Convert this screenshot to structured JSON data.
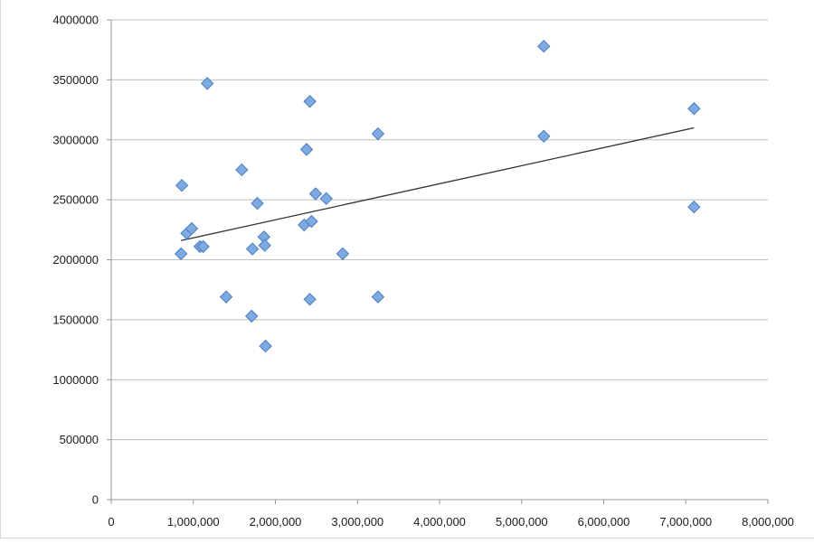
{
  "chart_data": {
    "type": "scatter",
    "title": "",
    "xlabel": "",
    "ylabel": "",
    "xlim": [
      0,
      8000000
    ],
    "ylim": [
      0,
      4000000
    ],
    "x_ticks": [
      0,
      1000000,
      2000000,
      3000000,
      4000000,
      5000000,
      6000000,
      7000000,
      8000000
    ],
    "x_tick_labels": [
      "0",
      "1,000,000",
      "2,000,000",
      "3,000,000",
      "4,000,000",
      "5,000,000",
      "6,000,000",
      "7,000,000",
      "8,000,000"
    ],
    "y_ticks": [
      0,
      500000,
      1000000,
      1500000,
      2000000,
      2500000,
      3000000,
      3500000,
      4000000
    ],
    "y_tick_labels": [
      "0",
      "500000",
      "1000000",
      "1500000",
      "2000000",
      "2500000",
      "3000000",
      "3500000",
      "4000000"
    ],
    "grid": {
      "horizontal": true,
      "vertical": false
    },
    "legend": "none",
    "marker": "diamond",
    "colors": {
      "marker_fill": "#7ea9e1",
      "marker_edge": "#4a7fc0",
      "trendline": "#333333",
      "grid": "#bfbfbf",
      "axis": "#999999"
    },
    "points": [
      {
        "x": 860000,
        "y": 2620000
      },
      {
        "x": 850000,
        "y": 2050000
      },
      {
        "x": 920000,
        "y": 2220000
      },
      {
        "x": 980000,
        "y": 2260000
      },
      {
        "x": 1080000,
        "y": 2110000
      },
      {
        "x": 1120000,
        "y": 2110000
      },
      {
        "x": 1170000,
        "y": 3470000
      },
      {
        "x": 1400000,
        "y": 1690000
      },
      {
        "x": 1590000,
        "y": 2750000
      },
      {
        "x": 1710000,
        "y": 1530000
      },
      {
        "x": 1720000,
        "y": 2090000
      },
      {
        "x": 1780000,
        "y": 2470000
      },
      {
        "x": 1860000,
        "y": 2190000
      },
      {
        "x": 1870000,
        "y": 2120000
      },
      {
        "x": 1880000,
        "y": 1280000
      },
      {
        "x": 2350000,
        "y": 2290000
      },
      {
        "x": 2380000,
        "y": 2920000
      },
      {
        "x": 2420000,
        "y": 3320000
      },
      {
        "x": 2420000,
        "y": 1670000
      },
      {
        "x": 2440000,
        "y": 2320000
      },
      {
        "x": 2490000,
        "y": 2550000
      },
      {
        "x": 2620000,
        "y": 2510000
      },
      {
        "x": 2820000,
        "y": 2050000
      },
      {
        "x": 3250000,
        "y": 3050000
      },
      {
        "x": 3250000,
        "y": 1690000
      },
      {
        "x": 5270000,
        "y": 3780000
      },
      {
        "x": 5270000,
        "y": 3030000
      },
      {
        "x": 7100000,
        "y": 3260000
      },
      {
        "x": 7100000,
        "y": 2440000
      }
    ],
    "trendline": {
      "type": "linear",
      "x_start": 850000,
      "y_start": 2160000,
      "x_end": 7100000,
      "y_end": 3100000
    }
  }
}
